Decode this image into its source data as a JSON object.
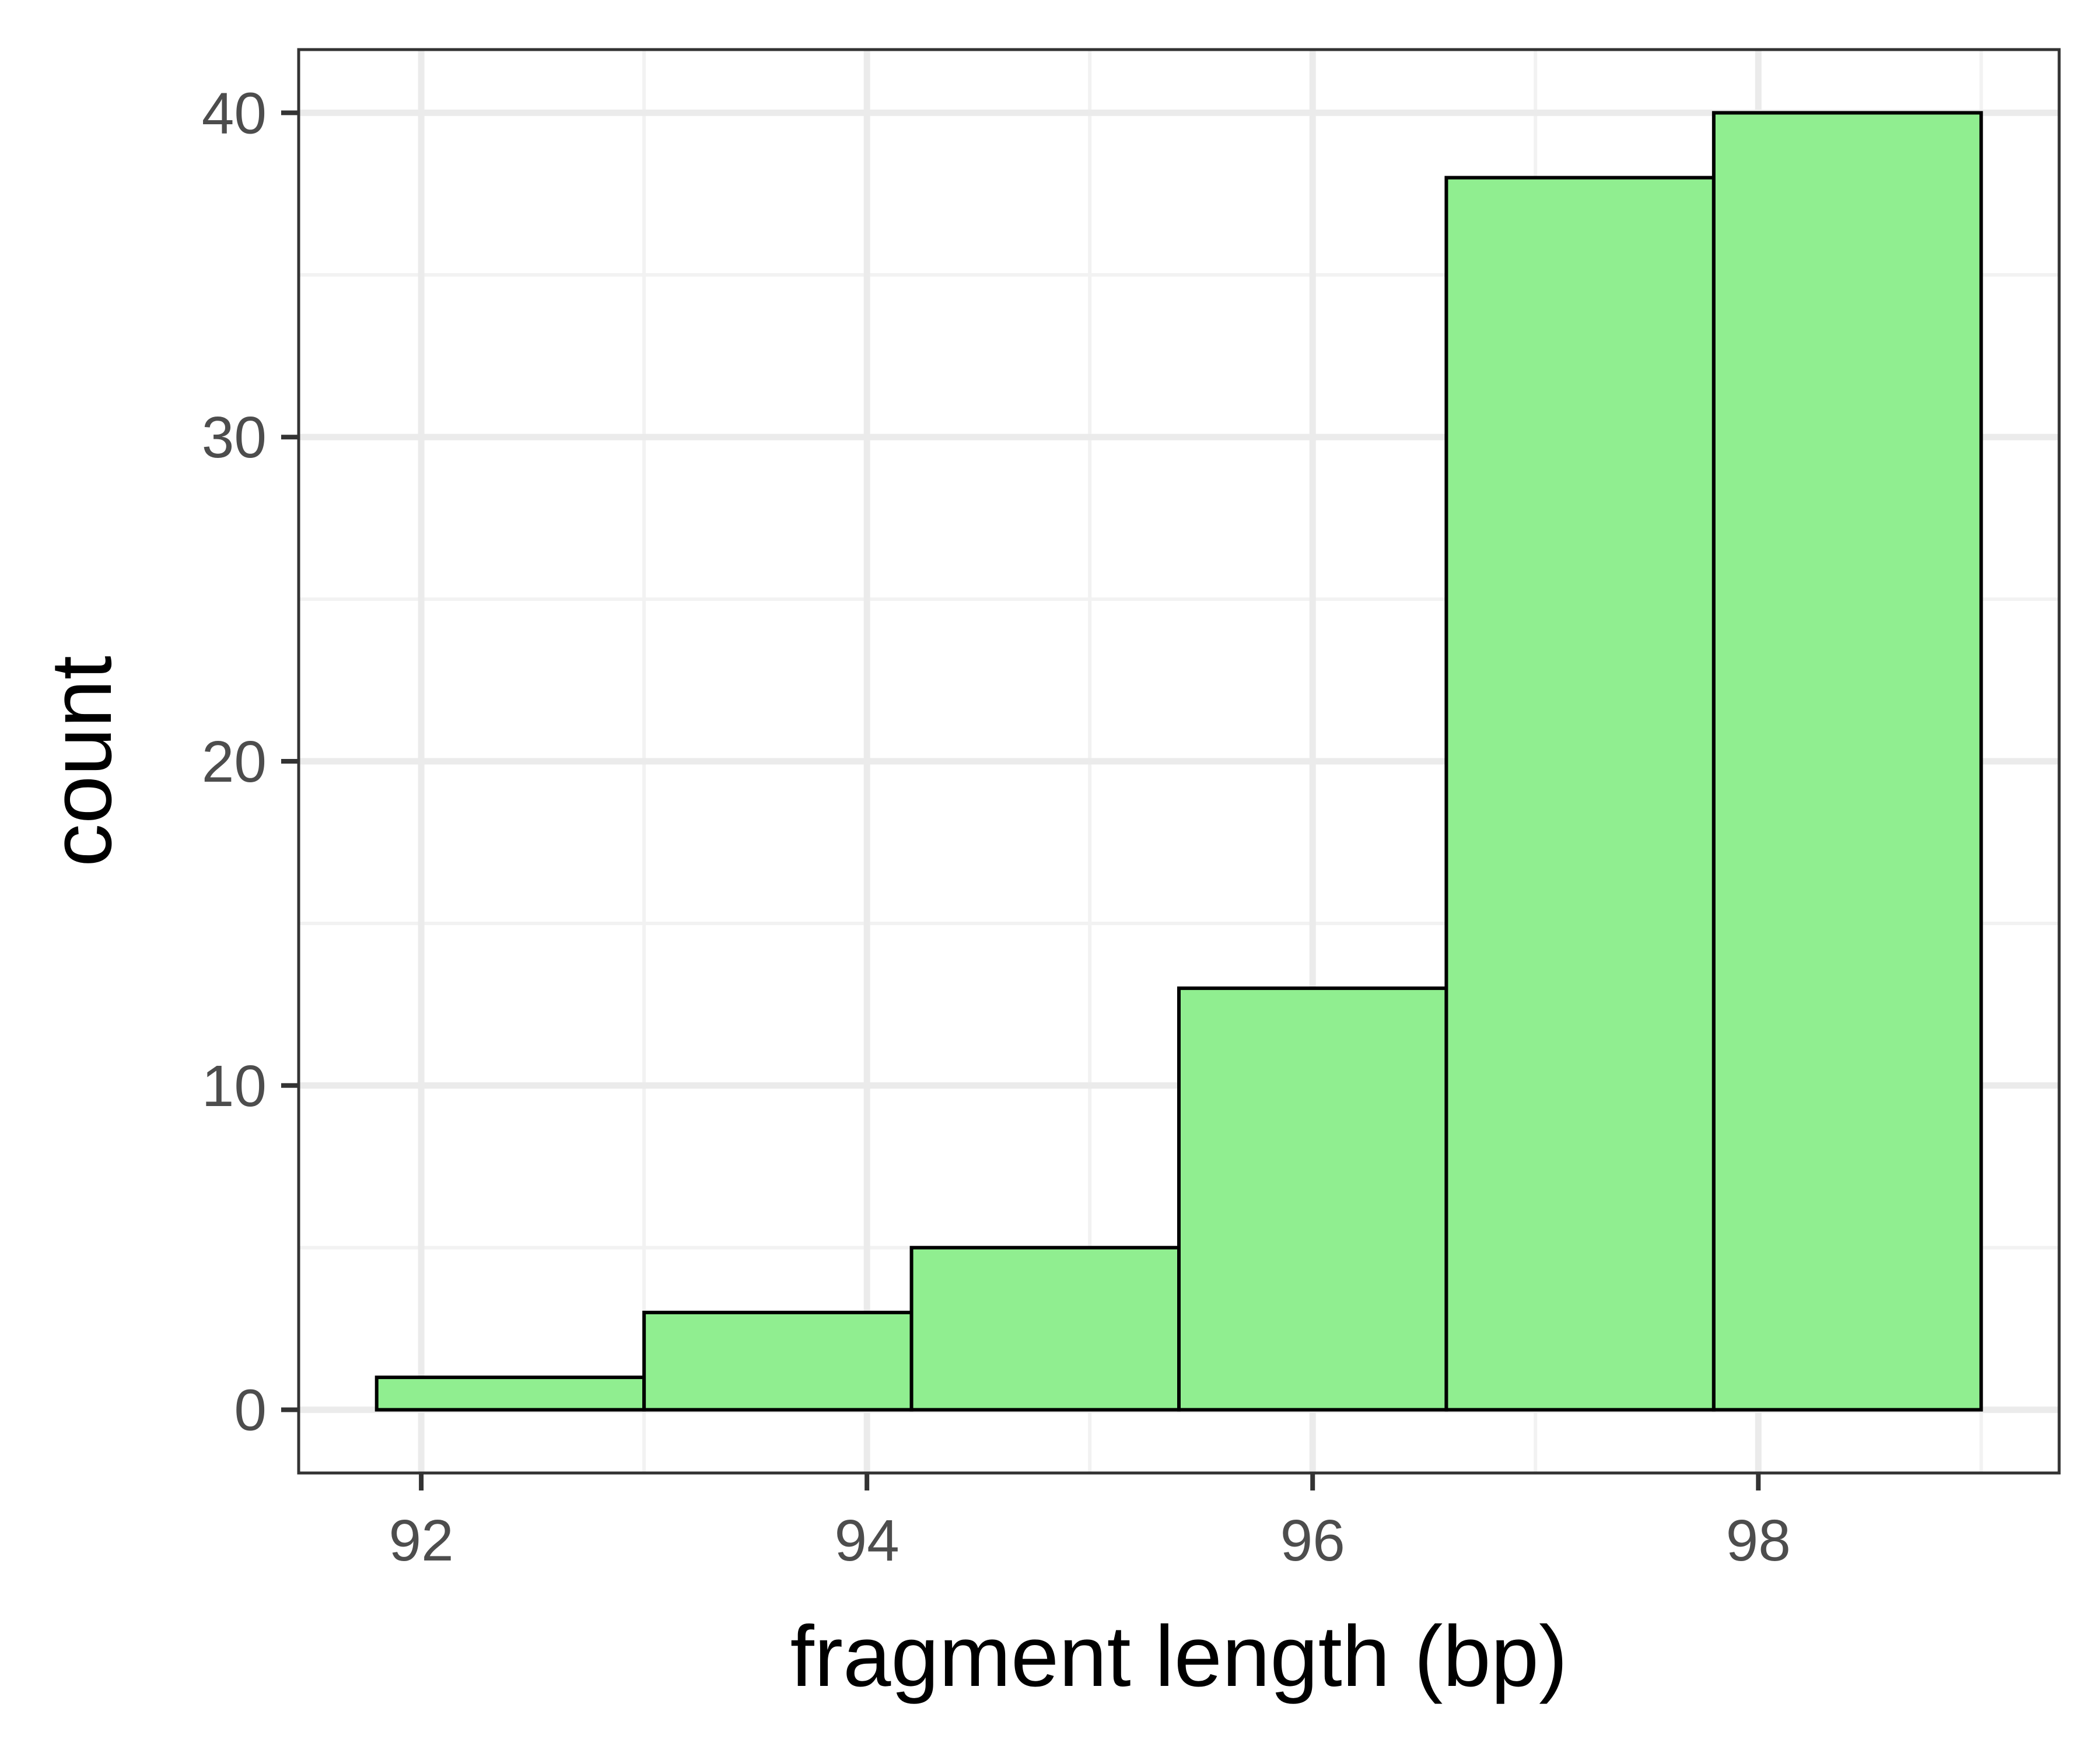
{
  "chart_data": {
    "type": "bar",
    "subtype": "histogram",
    "title": "",
    "xlabel": "fragment length (bp)",
    "ylabel": "count",
    "x_ticks": [
      92,
      94,
      96,
      98
    ],
    "y_ticks": [
      0,
      10,
      20,
      30,
      40
    ],
    "xlim": [
      91.45,
      99.35
    ],
    "ylim": [
      -1.95,
      41.95
    ],
    "bins": [
      {
        "x_start": 91.8,
        "x_end": 93.0,
        "count": 1
      },
      {
        "x_start": 93.0,
        "x_end": 94.2,
        "count": 3
      },
      {
        "x_start": 94.2,
        "x_end": 95.4,
        "count": 5
      },
      {
        "x_start": 95.4,
        "x_end": 96.6,
        "count": 13
      },
      {
        "x_start": 96.6,
        "x_end": 97.8,
        "count": 38
      },
      {
        "x_start": 97.8,
        "x_end": 99.0,
        "count": 40
      }
    ],
    "grid": true,
    "legend": "none",
    "colors": {
      "bar_fill": "#90ee90",
      "bar_stroke": "#000000",
      "panel_border": "#333333",
      "grid_major": "#ebebeb",
      "grid_minor": "#f2f2f2",
      "tick_label": "#4d4d4d",
      "axis_title": "#000000",
      "background": "#ffffff"
    }
  }
}
